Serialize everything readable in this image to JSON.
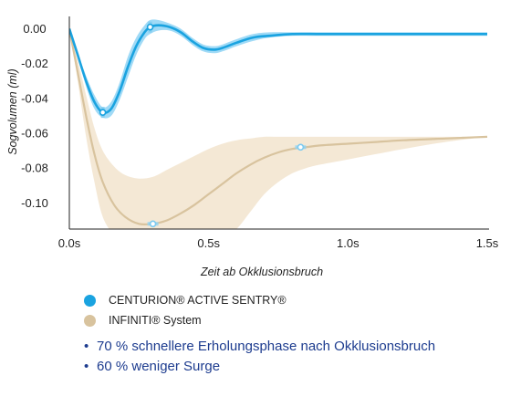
{
  "chart_data": {
    "type": "line",
    "xlabel": "Zeit ab Okklusionsbruch",
    "ylabel": "Sogvolumen (ml)",
    "xlim": [
      0,
      1.5
    ],
    "ylim": [
      -0.115,
      0.005
    ],
    "x_ticks": [
      0,
      0.5,
      1.0,
      1.5
    ],
    "x_tick_labels": [
      "0.0s",
      "0.5s",
      "1.0s",
      "1.5s"
    ],
    "y_ticks": [
      0.0,
      -0.02,
      -0.04,
      -0.06,
      -0.08,
      -0.1
    ],
    "y_tick_labels": [
      "0.00",
      "-0.02",
      "-0.04",
      "-0.06",
      "-0.08",
      "-0.10"
    ],
    "grid": false,
    "series": [
      {
        "name": "CENTURION® ACTIVE SENTRY®",
        "color": "#1aa3e0",
        "band_color": "#8fd3f4",
        "x": [
          0,
          0.03,
          0.06,
          0.09,
          0.12,
          0.15,
          0.18,
          0.21,
          0.24,
          0.27,
          0.29,
          0.32,
          0.36,
          0.4,
          0.44,
          0.48,
          0.52,
          0.55,
          0.6,
          0.66,
          0.72,
          0.8,
          0.9,
          1.0,
          1.2,
          1.5
        ],
        "y": [
          0,
          -0.015,
          -0.03,
          -0.042,
          -0.048,
          -0.046,
          -0.036,
          -0.022,
          -0.01,
          -0.002,
          0.001,
          0.002,
          0.001,
          -0.002,
          -0.007,
          -0.011,
          -0.012,
          -0.011,
          -0.008,
          -0.005,
          -0.004,
          -0.003,
          -0.003,
          -0.003,
          -0.003,
          -0.003
        ],
        "band_upper": [
          0,
          -0.014,
          -0.027,
          -0.038,
          -0.045,
          -0.042,
          -0.031,
          -0.016,
          -0.005,
          0.002,
          0.005,
          0.005,
          0.003,
          0.0,
          -0.005,
          -0.009,
          -0.01,
          -0.009,
          -0.006,
          -0.003,
          -0.002,
          -0.002,
          -0.002,
          -0.002,
          -0.002,
          -0.002
        ],
        "band_lower": [
          0,
          -0.016,
          -0.033,
          -0.046,
          -0.051,
          -0.05,
          -0.041,
          -0.028,
          -0.015,
          -0.006,
          -0.003,
          -0.001,
          -0.001,
          -0.004,
          -0.009,
          -0.013,
          -0.014,
          -0.013,
          -0.01,
          -0.007,
          -0.005,
          -0.004,
          -0.004,
          -0.004,
          -0.004,
          -0.004
        ],
        "markers": [
          [
            0.12,
            -0.048
          ],
          [
            0.29,
            0.001
          ]
        ]
      },
      {
        "name": "INFINITI® System",
        "color": "#d8c39e",
        "band_color": "#f3e6d0",
        "x": [
          0,
          0.03,
          0.06,
          0.09,
          0.12,
          0.16,
          0.2,
          0.25,
          0.3,
          0.35,
          0.4,
          0.45,
          0.5,
          0.55,
          0.6,
          0.65,
          0.7,
          0.75,
          0.8,
          0.85,
          0.9,
          1.0,
          1.1,
          1.2,
          1.35,
          1.5
        ],
        "y": [
          0,
          -0.025,
          -0.05,
          -0.072,
          -0.088,
          -0.101,
          -0.108,
          -0.112,
          -0.112,
          -0.11,
          -0.106,
          -0.101,
          -0.095,
          -0.089,
          -0.083,
          -0.078,
          -0.074,
          -0.071,
          -0.069,
          -0.068,
          -0.067,
          -0.066,
          -0.065,
          -0.064,
          -0.063,
          -0.062
        ],
        "band_upper": [
          0,
          -0.018,
          -0.038,
          -0.057,
          -0.07,
          -0.079,
          -0.084,
          -0.086,
          -0.085,
          -0.081,
          -0.077,
          -0.073,
          -0.069,
          -0.066,
          -0.064,
          -0.063,
          -0.062,
          -0.062,
          -0.062,
          -0.062,
          -0.062,
          -0.062,
          -0.062,
          -0.062,
          -0.062,
          -0.062
        ],
        "band_lower": [
          0,
          -0.03,
          -0.062,
          -0.088,
          -0.108,
          -0.118,
          -0.12,
          -0.12,
          -0.12,
          -0.12,
          -0.12,
          -0.12,
          -0.12,
          -0.12,
          -0.115,
          -0.105,
          -0.095,
          -0.088,
          -0.083,
          -0.08,
          -0.078,
          -0.075,
          -0.072,
          -0.069,
          -0.065,
          -0.062
        ],
        "markers": [
          [
            0.3,
            -0.112
          ],
          [
            0.83,
            -0.068
          ]
        ]
      }
    ]
  },
  "legend": [
    {
      "label": "CENTURION® ACTIVE SENTRY®",
      "color": "#1aa3e0"
    },
    {
      "label": "INFINITI® System",
      "color": "#d8c39e"
    }
  ],
  "bullets": [
    "70 % schnellere Erholungsphase nach Okklusionsbruch",
    "60 % weniger Surge"
  ]
}
